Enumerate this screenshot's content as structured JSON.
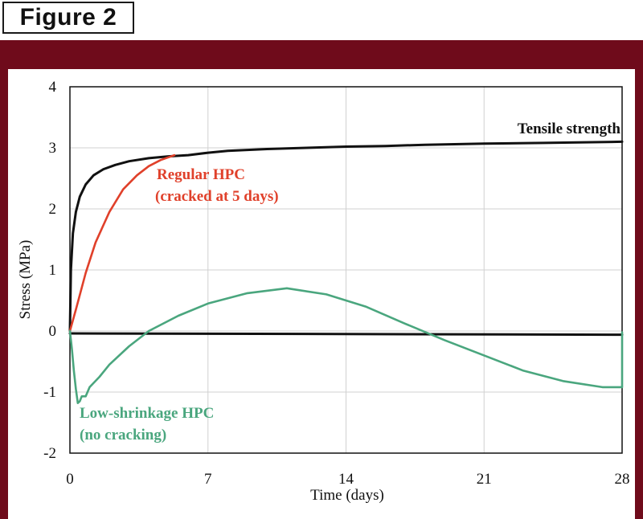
{
  "figure_label": "Figure 2",
  "colors": {
    "frame": "#6f0b1b",
    "tensile": "#111111",
    "regular": "#e0402a",
    "low_shrinkage": "#4aa67e",
    "grid": "#d0d0d0"
  },
  "chart_data": {
    "type": "line",
    "xlabel": "Time (days)",
    "ylabel": "Stress (MPa)",
    "xlim": [
      0,
      28
    ],
    "ylim": [
      -2,
      4
    ],
    "xticks": [
      "0",
      "7",
      "14",
      "21",
      "28"
    ],
    "yticks": [
      "-2",
      "-1",
      "0",
      "1",
      "2",
      "3",
      "4"
    ],
    "grid": true,
    "series": [
      {
        "name": "Tensile strength",
        "color": "#111111",
        "x": [
          0,
          0.05,
          0.15,
          0.3,
          0.5,
          0.8,
          1.2,
          1.7,
          2.3,
          3.0,
          4.0,
          5.0,
          6.0,
          7.0,
          8.0,
          10.0,
          12.0,
          14.0,
          16.0,
          18.0,
          21.0,
          24.0,
          28.0
        ],
        "y": [
          0,
          1.0,
          1.6,
          1.95,
          2.2,
          2.4,
          2.55,
          2.65,
          2.72,
          2.78,
          2.83,
          2.86,
          2.88,
          2.92,
          2.95,
          2.98,
          3.0,
          3.02,
          3.03,
          3.05,
          3.07,
          3.08,
          3.1
        ]
      },
      {
        "name": "Regular HPC\n(cracked at 5 days)",
        "color": "#e0402a",
        "x": [
          0,
          0.3,
          0.8,
          1.3,
          2.0,
          2.7,
          3.4,
          4.0,
          4.6,
          5.3
        ],
        "y": [
          0,
          0.35,
          0.95,
          1.45,
          1.95,
          2.32,
          2.55,
          2.7,
          2.8,
          2.88
        ]
      },
      {
        "name": "Low-shrinkage HPC\n(no cracking)",
        "color": "#4aa67e",
        "x": [
          0,
          0.1,
          0.2,
          0.3,
          0.4,
          0.5,
          0.6,
          0.8,
          1.0,
          1.5,
          2.0,
          3.0,
          4.0,
          5.5,
          7.0,
          9.0,
          11.0,
          13.0,
          15.0,
          17.0,
          19.0,
          21.0,
          23.0,
          25.0,
          27.0,
          28.0,
          28.0
        ],
        "y": [
          0,
          -0.3,
          -0.65,
          -0.95,
          -1.18,
          -1.15,
          -1.07,
          -1.07,
          -0.92,
          -0.75,
          -0.55,
          -0.25,
          0.0,
          0.25,
          0.45,
          0.62,
          0.7,
          0.6,
          0.4,
          0.12,
          -0.15,
          -0.4,
          -0.65,
          -0.82,
          -0.92,
          -0.92,
          -0.02
        ]
      },
      {
        "name": "",
        "color": "#111111",
        "x": [
          0,
          28
        ],
        "y": [
          -0.04,
          -0.06
        ]
      }
    ],
    "annotations": [
      {
        "text": "Tensile strength",
        "color": "#111111"
      },
      {
        "text": "Regular HPC",
        "color": "#e0402a"
      },
      {
        "text": "(cracked at 5 days)",
        "color": "#e0402a"
      },
      {
        "text": "Low-shrinkage HPC",
        "color": "#4aa67e"
      },
      {
        "text": "(no cracking)",
        "color": "#4aa67e"
      }
    ]
  }
}
